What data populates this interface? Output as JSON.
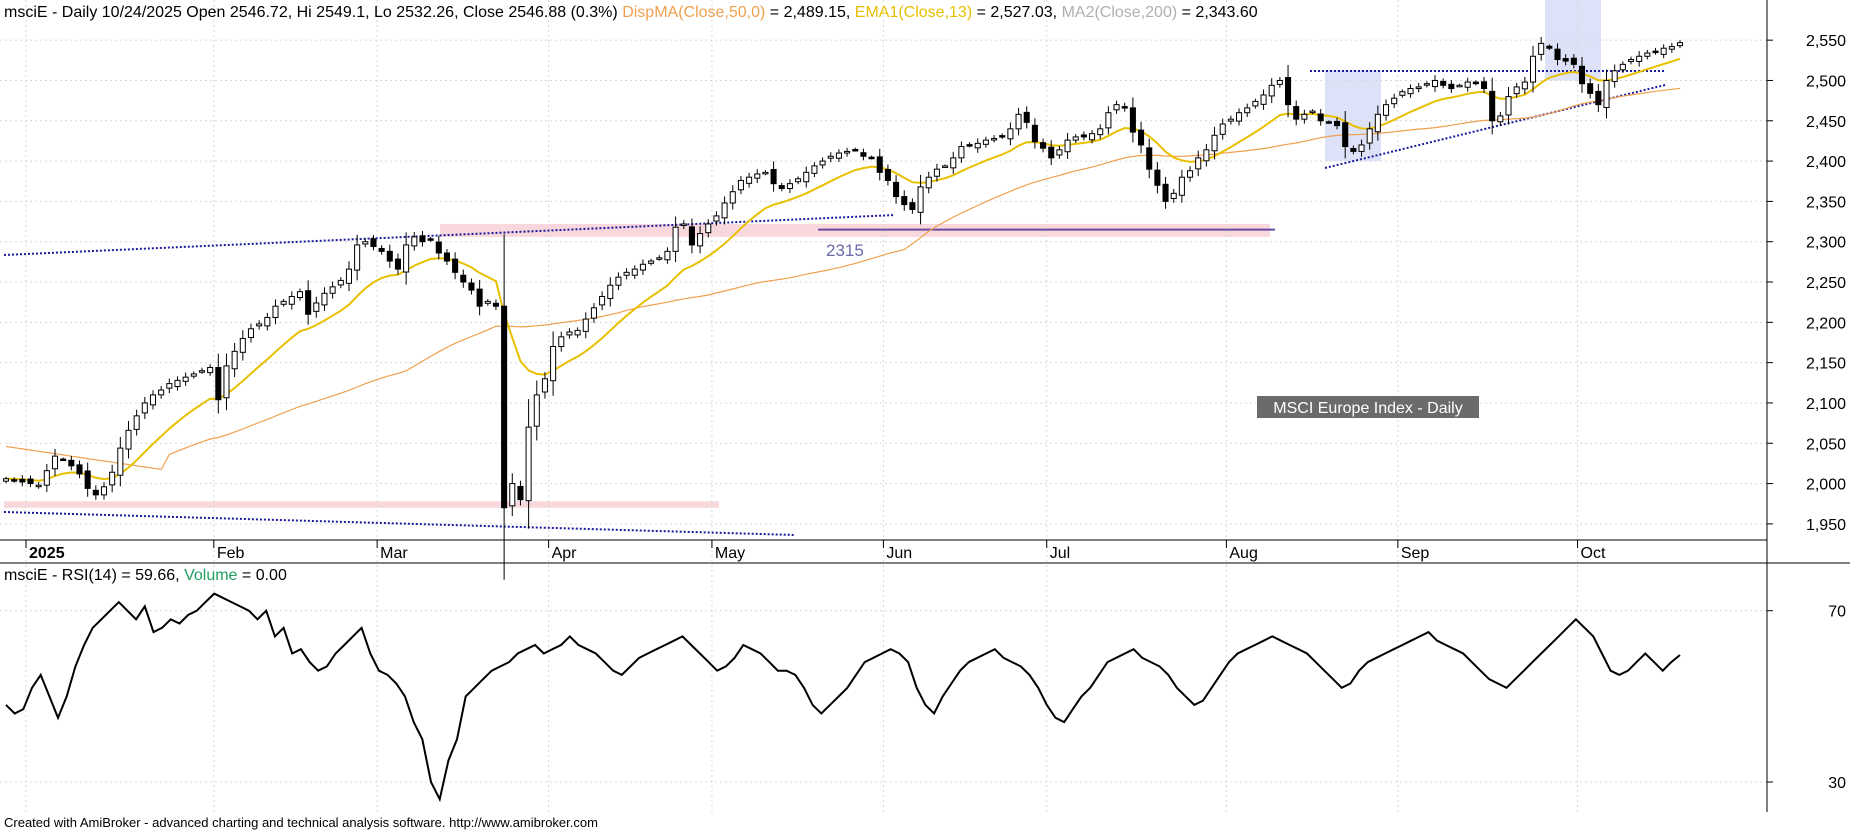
{
  "header": {
    "price_title": "msciE - Daily 10/24/2025 Open 2546.72, Hi 2549.1, Lo 2532.26, Close 2546.88 (0.3%)",
    "dispma_label": "DispMA(Close,50,0)",
    "dispma_value": " = 2,489.15,",
    "ema_label": "EMA1(Close,13)",
    "ema_value": " = 2,527.03,",
    "ma2_label": "MA2(Close,200)",
    "ma2_value": " = 2,343.60",
    "rsi_title": "msciE - RSI(14) = 59.66,",
    "volume_label": "Volume",
    "volume_value": " = 0.00"
  },
  "annotations": {
    "index_name": "MSCI Europe Index - Daily",
    "level_label": "2315"
  },
  "footer": {
    "credit": "Created with AmiBroker - advanced charting and technical analysis software. http://www.amibroker.com"
  },
  "colors": {
    "dispma": "#f0a050",
    "ema": "#e8c000",
    "ma2": "#b0b0b0",
    "volume": "#20a060",
    "trendline": "#1a1aa0",
    "level_line": "#6a4aa0",
    "pink_zone": "#f8d8dc",
    "blue_zone": "#dde2f8",
    "label_box": "#6b6b6b"
  },
  "chart_data": [
    {
      "type": "candlestick",
      "series": [
        {
          "name": "EMA1(Close,13)"
        },
        {
          "name": "DispMA(Close,50,0)"
        }
      ],
      "x_tick_labels": [
        "2025",
        "Feb",
        "Mar",
        "Apr",
        "May",
        "Jun",
        "Jul",
        "Aug",
        "Sep",
        "Oct"
      ],
      "x_tick_days": [
        0,
        23,
        43,
        64,
        84,
        105,
        125,
        147,
        168,
        190
      ],
      "y_ticks": [
        1950,
        2000,
        2050,
        2100,
        2150,
        2200,
        2250,
        2300,
        2350,
        2400,
        2450,
        2500,
        2550
      ],
      "y_tick_labels": [
        "1,950",
        "2,000",
        "2,050",
        "2,100",
        "2,150",
        "2,200",
        "2,250",
        "2,300",
        "2,350",
        "2,400",
        "2,450",
        "2,500",
        "2,550"
      ],
      "ylim": [
        1930,
        2575
      ],
      "level": 2315,
      "closes": [
        2006,
        2004,
        2002,
        2000,
        1998,
        2016,
        2034,
        2030,
        2022,
        2012,
        1994,
        1986,
        1996,
        2014,
        2044,
        2066,
        2084,
        2100,
        2110,
        2116,
        2124,
        2128,
        2132,
        2136,
        2140,
        2144,
        2104,
        2146,
        2164,
        2180,
        2192,
        2198,
        2206,
        2220,
        2226,
        2232,
        2238,
        2210,
        2224,
        2236,
        2244,
        2252,
        2266,
        2296,
        2300,
        2294,
        2288,
        2276,
        2266,
        2296,
        2306,
        2300,
        2302,
        2286,
        2276,
        2262,
        2250,
        2240,
        2220,
        2226,
        2220,
        1970,
        2000,
        1980,
        2070,
        2110,
        2130,
        2170,
        2182,
        2188,
        2190,
        2204,
        2218,
        2232,
        2246,
        2256,
        2262,
        2266,
        2272,
        2276,
        2280,
        2288,
        2318,
        2322,
        2296,
        2310,
        2322,
        2332,
        2348,
        2362,
        2376,
        2380,
        2384,
        2386,
        2372,
        2366,
        2372,
        2378,
        2386,
        2394,
        2400,
        2406,
        2410,
        2412,
        2414,
        2406,
        2404,
        2386,
        2376,
        2356,
        2346,
        2340,
        2368,
        2380,
        2390,
        2394,
        2404,
        2418,
        2420,
        2422,
        2426,
        2428,
        2430,
        2440,
        2458,
        2448,
        2424,
        2416,
        2404,
        2414,
        2426,
        2430,
        2430,
        2434,
        2440,
        2460,
        2470,
        2466,
        2436,
        2420,
        2390,
        2370,
        2350,
        2360,
        2380,
        2388,
        2404,
        2414,
        2432,
        2446,
        2452,
        2460,
        2466,
        2474,
        2482,
        2494,
        2500,
        2470,
        2452,
        2458,
        2462,
        2450,
        2448,
        2444,
        2418,
        2412,
        2420,
        2440,
        2458,
        2470,
        2478,
        2486,
        2490,
        2492,
        2496,
        2500,
        2494,
        2490,
        2494,
        2498,
        2496,
        2490,
        2450,
        2456,
        2480,
        2492,
        2498,
        2530,
        2546,
        2540,
        2526,
        2524,
        2520,
        2496,
        2484,
        2470,
        2500,
        2512,
        2520,
        2526,
        2530,
        2534,
        2536,
        2540,
        2542,
        2546.88
      ]
    },
    {
      "type": "line",
      "series": [
        {
          "name": "RSI(14)"
        }
      ],
      "y_ticks": [
        30,
        70
      ],
      "ylim": [
        23,
        76
      ],
      "values": [
        48,
        46,
        47,
        52,
        55,
        50,
        45,
        50,
        57,
        62,
        66,
        68,
        70,
        72,
        70,
        68,
        71,
        65,
        66,
        68,
        67,
        69,
        70,
        72,
        74,
        73,
        72,
        71,
        70,
        68,
        70,
        64,
        66,
        60,
        61,
        58,
        56,
        57,
        60,
        62,
        64,
        66,
        60,
        56,
        55,
        53,
        50,
        44,
        40,
        30,
        26,
        35,
        40,
        50,
        52,
        54,
        56,
        57,
        58,
        60,
        61,
        62,
        60,
        61,
        62,
        64,
        62,
        61,
        60,
        58,
        56,
        55,
        57,
        59,
        60,
        61,
        62,
        63,
        64,
        62,
        60,
        58,
        56,
        57,
        59,
        62,
        61,
        60,
        58,
        56,
        56,
        55,
        52,
        48,
        46,
        48,
        50,
        52,
        55,
        58,
        59,
        60,
        61,
        60,
        58,
        52,
        48,
        46,
        50,
        53,
        56,
        58,
        59,
        60,
        61,
        59,
        58,
        57,
        55,
        52,
        48,
        45,
        44,
        47,
        50,
        52,
        55,
        58,
        59,
        60,
        61,
        59,
        58,
        57,
        55,
        52,
        50,
        48,
        49,
        52,
        55,
        58,
        60,
        61,
        62,
        63,
        64,
        63,
        62,
        61,
        60,
        58,
        56,
        54,
        52,
        53,
        56,
        58,
        59,
        60,
        61,
        62,
        63,
        64,
        65,
        63,
        62,
        61,
        60,
        58,
        56,
        54,
        53,
        52,
        54,
        56,
        58,
        60,
        62,
        64,
        66,
        68,
        66,
        64,
        60,
        56,
        55,
        56,
        58,
        60,
        58,
        56,
        58,
        59.66
      ]
    }
  ]
}
